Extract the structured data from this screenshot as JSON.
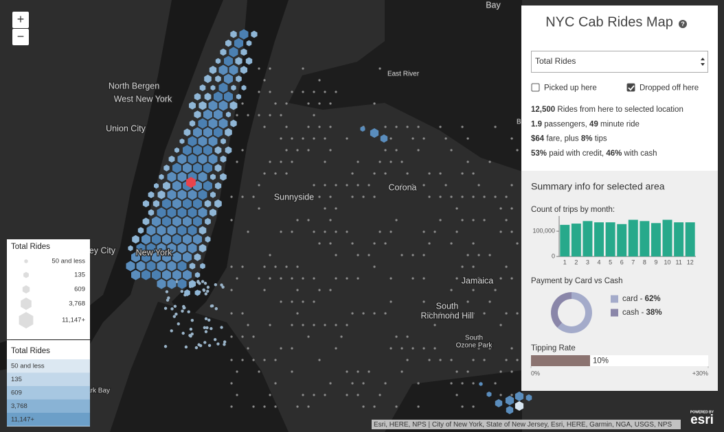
{
  "map": {
    "labels": [
      "Bay",
      "North Bergen",
      "West New York",
      "Union City",
      "East River",
      "Sunnyside",
      "Corona",
      "Jersey City",
      "New York",
      "Jamaica",
      "South",
      "Richmond Hill",
      "South",
      "Ozone Park",
      "Newark Bay",
      "Bay"
    ],
    "zoom_in": "+",
    "zoom_out": "−",
    "attribution": "Esri, HERE, NPS | City of New York, State of New Jersey, Esri, HERE, Garmin, NGA, USGS, NPS",
    "logo_caption": "POWERED BY",
    "logo": "esri"
  },
  "legend_size": {
    "title": "Total Rides",
    "items": [
      "50 and less",
      "135",
      "609",
      "3,768",
      "11,147+"
    ]
  },
  "legend_color": {
    "title": "Total Rides",
    "items": [
      "50 and less",
      "135",
      "609",
      "3,768",
      "11,147+"
    ],
    "colors": [
      "#dce8f2",
      "#c3d8ea",
      "#a7c7e1",
      "#89b3d5",
      "#6c9fc8"
    ]
  },
  "panel": {
    "title": "NYC Cab Rides Map",
    "help": "?",
    "select": "Total Rides",
    "checkboxes": [
      {
        "label": "Picked up here",
        "checked": false
      },
      {
        "label": "Dropped off here",
        "checked": true
      }
    ],
    "stats": [
      [
        "12,500",
        " Rides from here to selected location"
      ],
      [
        "1.9",
        " passengers, ",
        "49",
        " minute ride"
      ],
      [
        "$64",
        " fare, plus ",
        "8%",
        " tips"
      ],
      [
        "53%",
        " paid with credit, ",
        "46%",
        " with cash"
      ]
    ],
    "summary_title": "Summary info for selected area"
  },
  "chart_data": [
    {
      "type": "bar",
      "title": "Count of trips by month:",
      "color": "#27a98b",
      "categories": [
        "1",
        "2",
        "3",
        "4",
        "5",
        "6",
        "7",
        "8",
        "9",
        "10",
        "11",
        "12"
      ],
      "values": [
        125000,
        130000,
        140000,
        135000,
        135000,
        128000,
        145000,
        140000,
        132000,
        145000,
        135000,
        135000
      ],
      "ylim": [
        0,
        160000
      ],
      "yticks": [
        0,
        {
          "value": 100000,
          "label": "100,000"
        }
      ]
    },
    {
      "type": "pie",
      "title": "Payment by Card vs Cash",
      "categories": [
        "card",
        "cash"
      ],
      "values": [
        62,
        38
      ],
      "value_labels": [
        "62%",
        "38%"
      ],
      "colors": [
        "#a4abca",
        "#8a86a9"
      ],
      "donut": true
    },
    {
      "type": "hbar",
      "title": "Tipping Rate",
      "values": [
        10
      ],
      "value_labels": [
        "10%"
      ],
      "color": "#8b7370",
      "xlim": [
        0,
        30
      ],
      "xticks": [
        {
          "value": 0,
          "label": "0%"
        },
        {
          "value": 30,
          "label": "+30%"
        }
      ]
    }
  ]
}
